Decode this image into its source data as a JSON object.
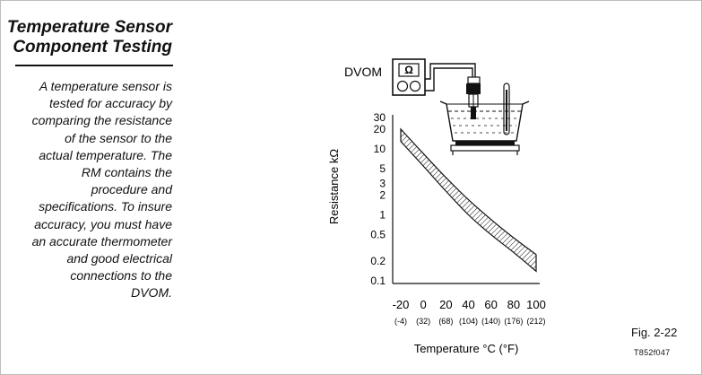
{
  "sidebar": {
    "title_lines": [
      "Temperature Sensor",
      "Component Testing"
    ],
    "body_lines": [
      "A temperature sensor is",
      "tested for accuracy by",
      "comparing the resistance",
      "of the sensor to the",
      "actual temperature. The",
      "RM contains the",
      "procedure and",
      "specifications. To insure",
      "accuracy, you must have",
      "an accurate thermometer",
      "and good electrical",
      "connections to the",
      "DVOM."
    ]
  },
  "diagram": {
    "meter_label": "DVOM",
    "meter_symbol": "Ω"
  },
  "chart_data": {
    "type": "area",
    "ylabel": "Resistance kΩ",
    "xlabel": "Temperature °C (°F)",
    "y_scale": "log",
    "ylim": [
      0.1,
      30
    ],
    "xlim": [
      -20,
      100
    ],
    "y_ticks": [
      "30",
      "20",
      "10",
      "5",
      "3",
      "2",
      "1",
      "0.5",
      "0.2",
      "0.1"
    ],
    "y_tick_values": [
      30,
      20,
      10,
      5,
      3,
      2,
      1,
      0.5,
      0.2,
      0.1
    ],
    "x_ticks": [
      "-20",
      "0",
      "20",
      "40",
      "60",
      "80",
      "100"
    ],
    "x_tick_values": [
      -20,
      0,
      20,
      40,
      60,
      80,
      100
    ],
    "x_ticks_f": [
      "(-4)",
      "(32)",
      "(68)",
      "(104)",
      "(140)",
      "(176)",
      "(212)"
    ],
    "series": [
      {
        "x": [
          -20,
          0,
          20,
          40,
          60,
          80,
          100
        ],
        "upper": [
          20,
          8.5,
          3.7,
          1.7,
          0.85,
          0.45,
          0.25
        ],
        "lower": [
          13,
          5.5,
          2.3,
          1.0,
          0.5,
          0.27,
          0.14
        ]
      }
    ],
    "grid": false
  },
  "footer": {
    "figure_label": "Fig. 2-22",
    "code": "T852f047"
  }
}
